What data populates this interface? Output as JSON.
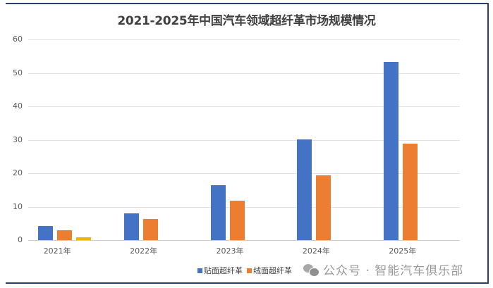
{
  "chart_data": {
    "type": "bar",
    "title": "2021-2025年中国汽车领域超纤革市场规模情况",
    "categories": [
      "2021年",
      "2022年",
      "2023年",
      "2024年",
      "2025年"
    ],
    "series": [
      {
        "name": "贴面超纤革",
        "color": "#4472c4",
        "values": [
          4.2,
          8.0,
          16.4,
          30.1,
          53.2
        ]
      },
      {
        "name": "绒面超纤革",
        "color": "#ed7d31",
        "values": [
          2.9,
          6.3,
          11.8,
          19.4,
          28.8
        ]
      },
      {
        "name": "",
        "color": "#f0b400",
        "values": [
          0.8,
          0,
          0,
          0,
          0
        ]
      }
    ],
    "xlabel": "",
    "ylabel": "",
    "ylim": [
      0,
      60
    ],
    "yticks": [
      0,
      10,
      20,
      30,
      40,
      50,
      60
    ],
    "grid": true,
    "legend_position": "bottom-right"
  },
  "legend": {
    "items": [
      {
        "label": "贴面超纤革",
        "color": "#4472c4"
      },
      {
        "label": "绒面超纤革",
        "color": "#ed7d31"
      }
    ]
  },
  "watermark": {
    "text": "公众号 · 智能汽车俱乐部",
    "icon": "wechat-icon"
  }
}
